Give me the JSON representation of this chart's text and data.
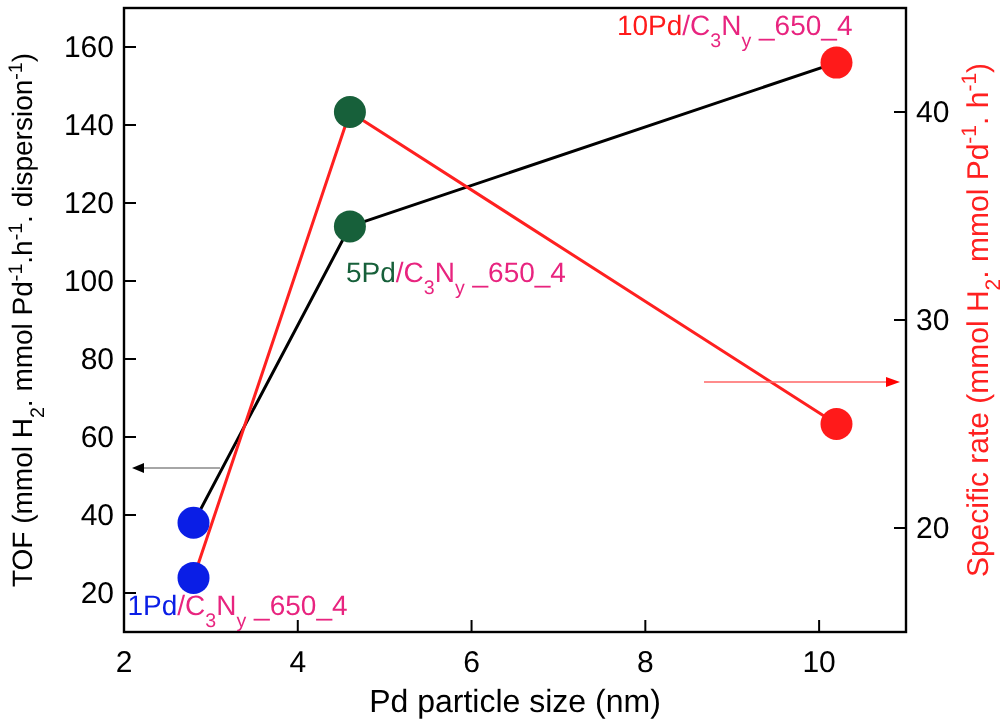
{
  "chart_data": {
    "type": "line",
    "xlabel": "Pd particle size (nm)",
    "ylabel": "TOF (mmol H$_{2}$. mmol Pd$^{-1}$.h$^{-1}$. dispersion$^{-1}$)",
    "y2label": "Specific rate (mmol H$_{2}$. mmol Pd$^{-1}$. h$^{-1}$)",
    "x": [
      2.8,
      4.6,
      10.2
    ],
    "series": [
      {
        "color": "#000000",
        "colors": [
          "#0a1ee6",
          "#17603a",
          "#ff1a1a"
        ],
        "values": [
          38,
          114,
          156
        ]
      },
      {
        "color": "#ff2020",
        "colors": [
          "#0a1ee6",
          "#17603a",
          "#ff1a1a"
        ],
        "axis": "y2",
        "values": [
          17.6,
          40,
          25
        ]
      }
    ],
    "xlim": [
      2,
      11
    ],
    "xticks": [
      2,
      4,
      6,
      8,
      10
    ],
    "ylim": [
      10,
      170
    ],
    "yticks": [
      20,
      40,
      60,
      80,
      100,
      120,
      140,
      160
    ],
    "y2lim": [
      15,
      45
    ],
    "y2ticks": [
      20,
      30,
      40
    ],
    "marker": "circle",
    "line_style": "solid",
    "grid": false,
    "annotations": [
      {
        "text": "1Pd/C$_{3}$N$_{y}$ _650_4",
        "x": 2.8,
        "y": 38
      },
      {
        "text": "5Pd/C$_{3}$N$_{y}$ _650_4",
        "x": 4.6,
        "y": 114
      },
      {
        "text": "10Pd/C$_{3}$N$_{y}$ _650_4",
        "x": 10.2,
        "y": 156
      }
    ]
  }
}
